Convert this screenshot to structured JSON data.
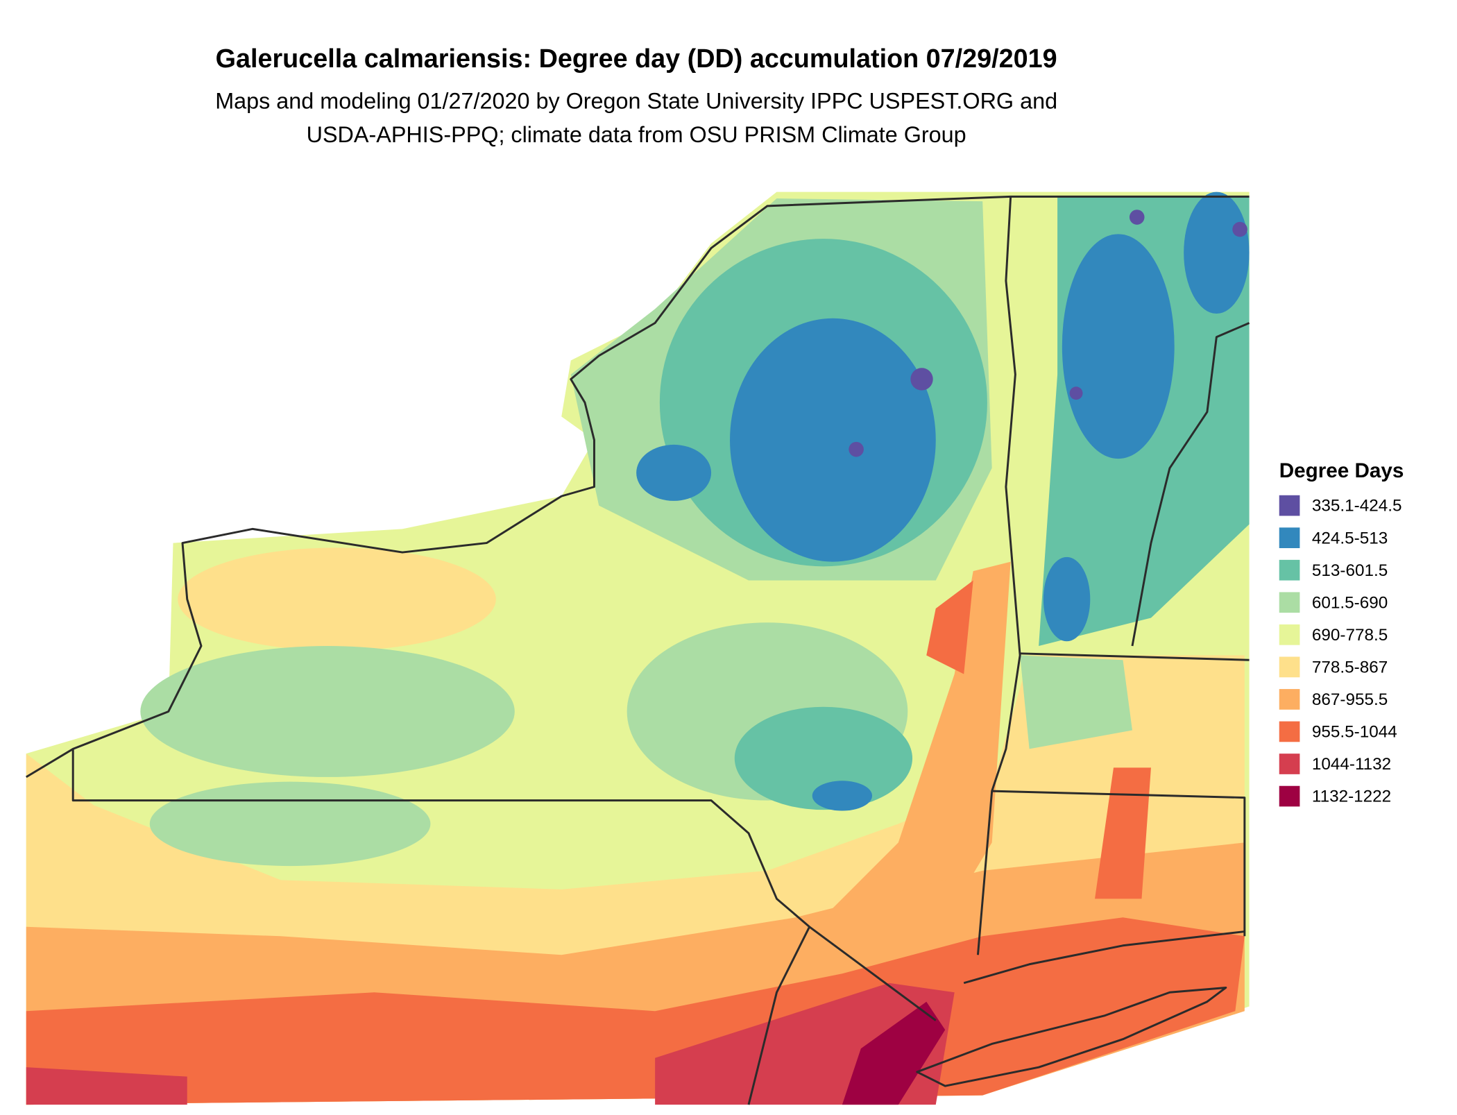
{
  "title": "Galerucella calmariensis: Degree day (DD) accumulation 07/29/2019",
  "subtitle": [
    "Maps and modeling 01/27/2020 by Oregon State University IPPC USPEST.ORG and",
    "USDA-APHIS-PPQ; climate data from OSU PRISM Climate Group"
  ],
  "legend": {
    "title": "Degree Days",
    "items": [
      {
        "label": "335.1-424.5",
        "color": "#5e4fa2"
      },
      {
        "label": "424.5-513",
        "color": "#3288bd"
      },
      {
        "label": "513-601.5",
        "color": "#66c2a5"
      },
      {
        "label": "601.5-690",
        "color": "#abdda4"
      },
      {
        "label": "690-778.5",
        "color": "#e6f598"
      },
      {
        "label": "778.5-867",
        "color": "#fee08b"
      },
      {
        "label": "867-955.5",
        "color": "#fdae61"
      },
      {
        "label": "955.5-1044",
        "color": "#f46d43"
      },
      {
        "label": "1044-1132",
        "color": "#d53e4f"
      },
      {
        "label": "1132-1222",
        "color": "#9e0142"
      }
    ]
  }
}
